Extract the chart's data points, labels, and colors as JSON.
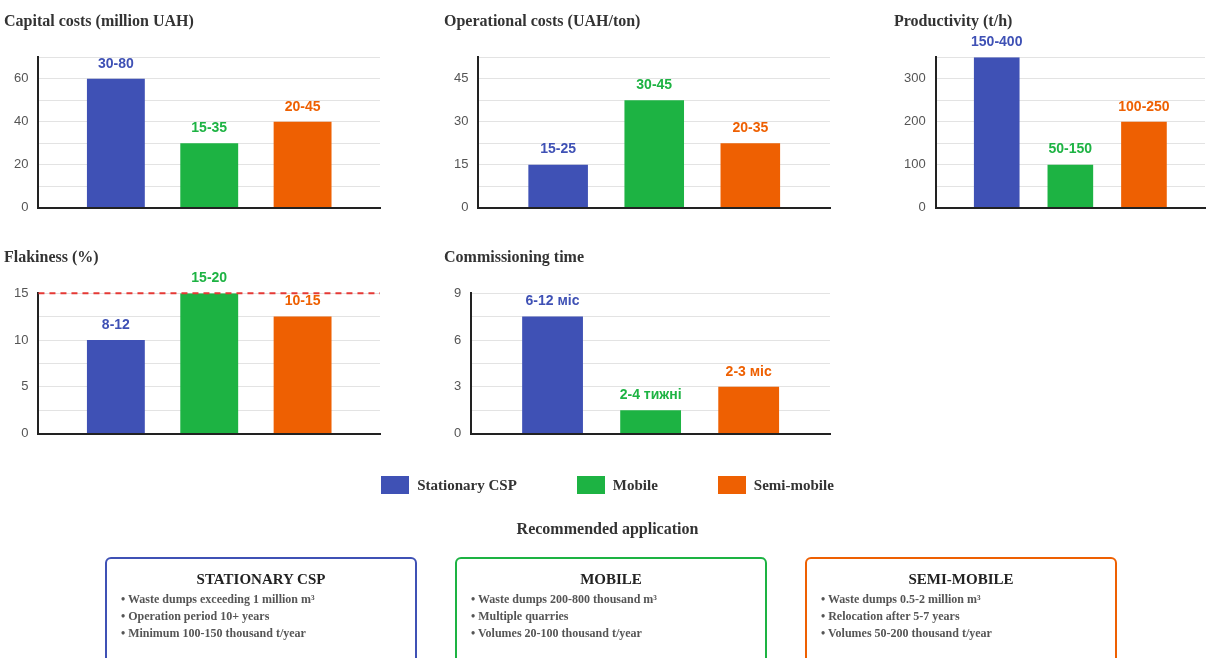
{
  "chart_data": [
    {
      "type": "bar",
      "title": "Capital costs (million UAH)",
      "categories": [
        null
      ],
      "legend": "bottom",
      "grid": "y",
      "ylim": [
        0,
        70
      ],
      "yticks": [
        0,
        {
          "value": 10,
          "label": null
        },
        20,
        {
          "value": 30,
          "label": null
        },
        40,
        {
          "value": 50,
          "label": null
        },
        60,
        {
          "value": 70,
          "label": null
        }
      ],
      "series": [
        {
          "name": "Stationary CSP",
          "color": "#3f51b5",
          "values": [
            60
          ],
          "value_labels": [
            "30-80"
          ]
        },
        {
          "name": "Mobile",
          "color": "#1db343",
          "values": [
            30
          ],
          "value_labels": [
            "15-35"
          ]
        },
        {
          "name": "Semi-mobile",
          "color": "#ee6002",
          "values": [
            40
          ],
          "value_labels": [
            "20-45"
          ]
        }
      ]
    },
    {
      "type": "bar",
      "title": "Operational costs (UAH/ton)",
      "categories": [
        null
      ],
      "grid": "y",
      "ylim": [
        0,
        52.5
      ],
      "yticks": [
        0,
        {
          "value": 7.5,
          "label": null
        },
        15,
        {
          "value": 22.5,
          "label": null
        },
        30,
        {
          "value": 37.5,
          "label": null
        },
        45,
        {
          "value": 52.5,
          "label": null
        }
      ],
      "series": [
        {
          "color": "#3f51b5",
          "values": [
            15
          ],
          "value_labels": [
            "15-25"
          ]
        },
        {
          "color": "#1db343",
          "values": [
            37.5
          ],
          "value_labels": [
            "30-45"
          ]
        },
        {
          "color": "#ee6002",
          "values": [
            22.5
          ],
          "value_labels": [
            "20-35"
          ]
        }
      ]
    },
    {
      "type": "bar",
      "title": "Productivity (t/h)",
      "categories": [
        null
      ],
      "grid": "y",
      "ylim": [
        0,
        350
      ],
      "yticks": [
        0,
        {
          "value": 50,
          "label": null
        },
        100,
        {
          "value": 150,
          "label": null
        },
        200,
        {
          "value": 250,
          "label": null
        },
        300,
        {
          "value": 350,
          "label": null
        }
      ],
      "series": [
        {
          "color": "#3f51b5",
          "values": [
            350
          ],
          "value_labels": [
            "150-400"
          ]
        },
        {
          "color": "#1db343",
          "values": [
            100
          ],
          "value_labels": [
            "50-150"
          ]
        },
        {
          "color": "#ee6002",
          "values": [
            200
          ],
          "value_labels": [
            "100-250"
          ]
        }
      ]
    },
    {
      "type": "bar",
      "title": "Flakiness (%)",
      "categories": [
        null
      ],
      "grid": "y",
      "ylim": [
        0,
        15
      ],
      "yticks": [
        0,
        {
          "value": 2.5,
          "label": null
        },
        5,
        {
          "value": 7.5,
          "label": null
        },
        10,
        {
          "value": 12.5,
          "label": null
        },
        15
      ],
      "ref_lines": [
        {
          "axis": "y",
          "value": 15,
          "color": "#e53935",
          "line_style": "dashed"
        }
      ],
      "series": [
        {
          "color": "#3f51b5",
          "values": [
            10
          ],
          "value_labels": [
            "8-12"
          ]
        },
        {
          "color": "#1db343",
          "values": [
            15
          ],
          "value_labels": [
            "15-20"
          ]
        },
        {
          "color": "#ee6002",
          "values": [
            12.5
          ],
          "value_labels": [
            "10-15"
          ]
        }
      ]
    },
    {
      "type": "bar",
      "title": "Commissioning time",
      "categories": [
        null
      ],
      "grid": "y",
      "ylim": [
        0,
        9
      ],
      "yticks": [
        0,
        {
          "value": 1.5,
          "label": null
        },
        3,
        {
          "value": 4.5,
          "label": null
        },
        6,
        {
          "value": 7.5,
          "label": null
        },
        9
      ],
      "series": [
        {
          "color": "#3f51b5",
          "values": [
            7.5
          ],
          "value_labels": [
            "6-12 міс"
          ]
        },
        {
          "color": "#1db343",
          "values": [
            1.5
          ],
          "value_labels": [
            "2-4 тижні"
          ]
        },
        {
          "color": "#ee6002",
          "values": [
            3
          ],
          "value_labels": [
            "2-3 міс"
          ]
        }
      ]
    },
    {
      "type": "other",
      "title": "Recommended application",
      "colors": [
        "#3f51b5",
        "#1db343",
        "#ee6002"
      ],
      "annotations": [
        "STATIONARY CSP",
        "• Waste dumps exceeding 1 million m³",
        "• Operation period 10+ years",
        "• Minimum 100-150 thousand t/year",
        "MOBILE",
        "• Waste dumps 200-800 thousand m³",
        "• Multiple quarries",
        "• Volumes 20-100 thousand t/year",
        "SEMI-MOBILE",
        "• Waste dumps 0.5-2 million m³",
        "• Relocation after 5-7 years",
        "• Volumes 50-200 thousand t/year"
      ]
    }
  ]
}
